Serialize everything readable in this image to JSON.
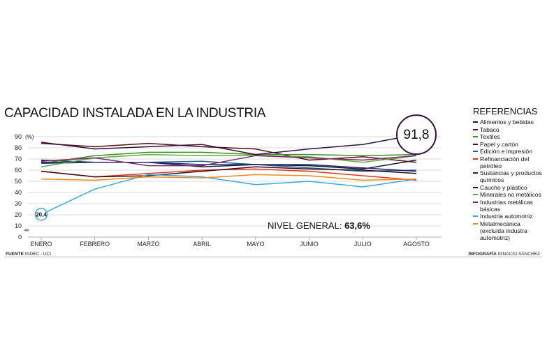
{
  "chart_data": {
    "type": "line",
    "title": "CAPACIDAD INSTALADA EN LA INDUSTRIA",
    "ylabel": "(%)",
    "ylim": [
      0,
      90
    ],
    "yticks": [
      0,
      10,
      20,
      30,
      40,
      50,
      60,
      70,
      80,
      90
    ],
    "categories": [
      "ENERO",
      "FEBRERO",
      "MARZO",
      "ABRIL",
      "MAYO",
      "JUNIO",
      "JULIO",
      "AGOSTO"
    ],
    "grid": true,
    "legend_title": "REFERENCIAS",
    "legend_position": "right",
    "series": [
      {
        "name": "Alimentos y bebidas",
        "color": "#0a1e3c",
        "values": [
          69,
          67,
          67,
          63,
          65,
          64,
          61,
          69
        ]
      },
      {
        "name": "Tabaco",
        "color": "#5e0f12",
        "values": [
          84,
          81,
          84,
          81,
          79,
          69,
          72,
          67
        ]
      },
      {
        "name": "Textiles",
        "color": "#3d8c28",
        "values": [
          66,
          73,
          76,
          76,
          74,
          74,
          73,
          74
        ]
      },
      {
        "name": "Papel y cartón",
        "color": "#2e1245",
        "values": [
          85,
          79,
          81,
          83,
          74,
          79,
          83,
          91.8
        ]
      },
      {
        "name": "Edición e impresión",
        "color": "#1f5f8c",
        "values": [
          66,
          67,
          67,
          68,
          65,
          62,
          59,
          60
        ]
      },
      {
        "name": "Refinanciación del petróleo",
        "color": "#e0341e",
        "values": [
          59,
          54,
          57,
          60,
          61,
          59,
          55,
          51
        ]
      },
      {
        "name": "Sustancias y productos químicos",
        "color": "#23267a",
        "values": [
          67,
          67,
          67,
          65,
          65,
          65,
          62,
          59
        ]
      },
      {
        "name": "Caucho y plástico",
        "color": "#3d0c0c",
        "values": [
          59,
          54,
          55,
          59,
          63,
          61,
          60,
          57
        ]
      },
      {
        "name": "Minerales no metálicos",
        "color": "#5fae3c",
        "values": [
          63,
          71,
          74,
          73,
          73,
          72,
          67,
          73
        ]
      },
      {
        "name": "Industrias metálicas básicas",
        "color": "#7a2a68",
        "values": [
          68,
          71,
          64,
          64,
          73,
          71,
          69,
          73
        ]
      },
      {
        "name": "Industria automotriz",
        "color": "#3aa9e0",
        "values": [
          20.4,
          43,
          56,
          54,
          47,
          50,
          45,
          52
        ]
      },
      {
        "name": "Metalmecánica (excluída industra automotriz)",
        "color": "#f08a1c",
        "values": [
          52,
          51,
          54,
          53,
          56,
          55,
          51,
          52
        ]
      }
    ],
    "annotations": {
      "nivel_general_label": "NIVEL GENERAL:",
      "nivel_general_value": "63,6%",
      "highlight_max": "91,8",
      "highlight_min": "20,4"
    }
  },
  "footer": {
    "source_label": "FUENTE",
    "source_text": "INDEC - UCI",
    "credit_label": "INFOGRAFÍA",
    "credit_text": "IGNACIO SÁNCHEZ"
  }
}
